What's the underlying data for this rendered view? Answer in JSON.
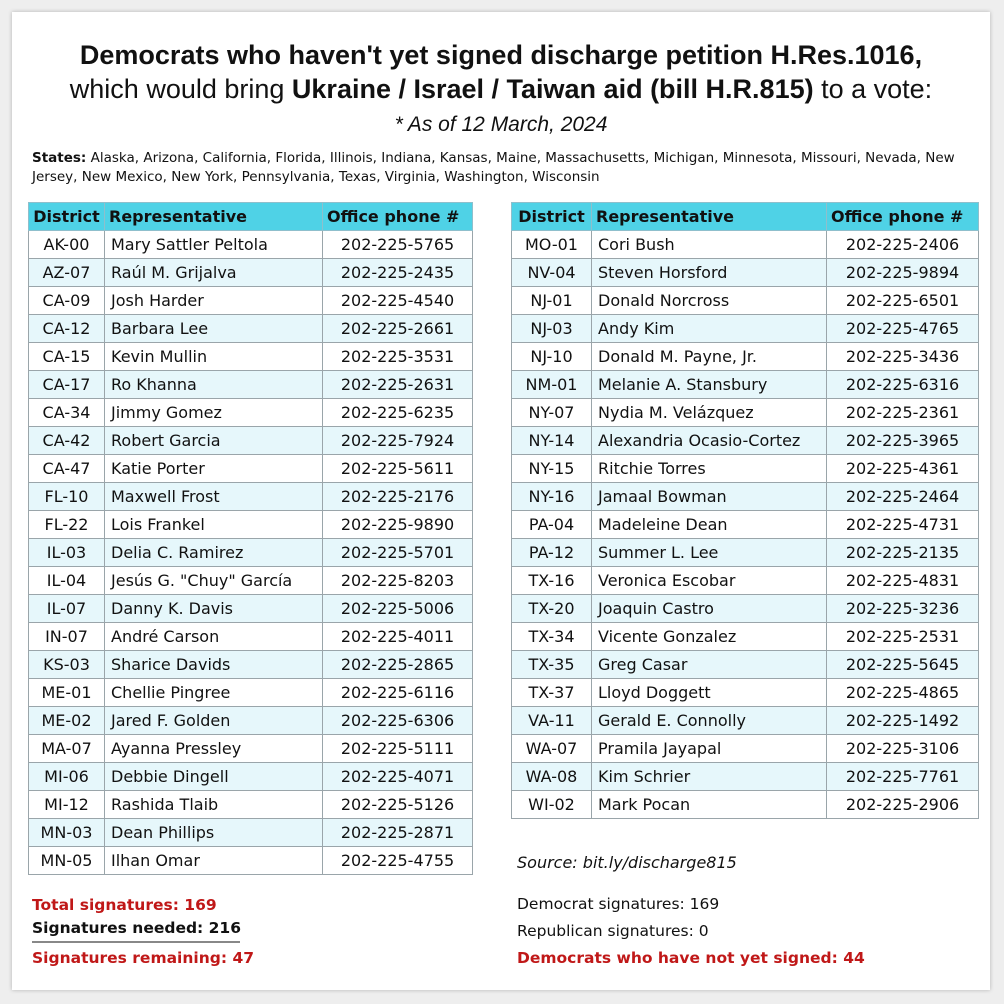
{
  "header": {
    "line1": "Democrats who haven't yet signed discharge petition H.Res.1016,",
    "line2_prefix": "which would bring ",
    "line2_bold": "Ukraine / Israel / Taiwan aid (bill H.R.815)",
    "line2_suffix": " to a vote:",
    "as_of": "* As of 12 March, 2024"
  },
  "states": {
    "label": "States:",
    "list": " Alaska, Arizona, California, Florida, Illinois, Indiana, Kansas, Maine, Massachusetts, Michigan, Minnesota, Missouri, Nevada, New Jersey, New Mexico, New York, Pennsylvania, Texas, Virginia, Washington, Wisconsin"
  },
  "columns": {
    "district": "District",
    "representative": "Representative",
    "phone": "Office phone #"
  },
  "left_rows": [
    {
      "district": "AK-00",
      "name": "Mary Sattler Peltola",
      "phone": "202-225-5765"
    },
    {
      "district": "AZ-07",
      "name": "Raúl M. Grijalva",
      "phone": "202-225-2435"
    },
    {
      "district": "CA-09",
      "name": "Josh Harder",
      "phone": "202-225-4540"
    },
    {
      "district": "CA-12",
      "name": "Barbara Lee",
      "phone": "202-225-2661"
    },
    {
      "district": "CA-15",
      "name": "Kevin Mullin",
      "phone": "202-225-3531"
    },
    {
      "district": "CA-17",
      "name": "Ro Khanna",
      "phone": "202-225-2631"
    },
    {
      "district": "CA-34",
      "name": "Jimmy Gomez",
      "phone": "202-225-6235"
    },
    {
      "district": "CA-42",
      "name": "Robert Garcia",
      "phone": "202-225-7924"
    },
    {
      "district": "CA-47",
      "name": "Katie Porter",
      "phone": "202-225-5611"
    },
    {
      "district": "FL-10",
      "name": "Maxwell Frost",
      "phone": "202-225-2176"
    },
    {
      "district": "FL-22",
      "name": "Lois Frankel",
      "phone": "202-225-9890"
    },
    {
      "district": "IL-03",
      "name": "Delia C. Ramirez",
      "phone": "202-225-5701"
    },
    {
      "district": "IL-04",
      "name": "Jesús G. \"Chuy\" García",
      "phone": "202-225-8203"
    },
    {
      "district": "IL-07",
      "name": "Danny K. Davis",
      "phone": "202-225-5006"
    },
    {
      "district": "IN-07",
      "name": "André Carson",
      "phone": "202-225-4011"
    },
    {
      "district": "KS-03",
      "name": "Sharice Davids",
      "phone": "202-225-2865"
    },
    {
      "district": "ME-01",
      "name": "Chellie Pingree",
      "phone": "202-225-6116"
    },
    {
      "district": "ME-02",
      "name": "Jared F. Golden",
      "phone": "202-225-6306"
    },
    {
      "district": "MA-07",
      "name": "Ayanna Pressley",
      "phone": "202-225-5111"
    },
    {
      "district": "MI-06",
      "name": "Debbie Dingell",
      "phone": "202-225-4071"
    },
    {
      "district": "MI-12",
      "name": "Rashida Tlaib",
      "phone": "202-225-5126"
    },
    {
      "district": "MN-03",
      "name": "Dean Phillips",
      "phone": "202-225-2871"
    },
    {
      "district": "MN-05",
      "name": "Ilhan Omar",
      "phone": "202-225-4755"
    }
  ],
  "right_rows": [
    {
      "district": "MO-01",
      "name": "Cori Bush",
      "phone": "202-225-2406"
    },
    {
      "district": "NV-04",
      "name": "Steven Horsford",
      "phone": "202-225-9894"
    },
    {
      "district": "NJ-01",
      "name": "Donald Norcross",
      "phone": "202-225-6501"
    },
    {
      "district": "NJ-03",
      "name": "Andy Kim",
      "phone": "202-225-4765"
    },
    {
      "district": "NJ-10",
      "name": "Donald M. Payne, Jr.",
      "phone": "202-225-3436"
    },
    {
      "district": "NM-01",
      "name": "Melanie A. Stansbury",
      "phone": "202-225-6316"
    },
    {
      "district": "NY-07",
      "name": "Nydia M. Velázquez",
      "phone": "202-225-2361"
    },
    {
      "district": "NY-14",
      "name": "Alexandria Ocasio-Cortez",
      "phone": "202-225-3965"
    },
    {
      "district": "NY-15",
      "name": "Ritchie Torres",
      "phone": "202-225-4361"
    },
    {
      "district": "NY-16",
      "name": "Jamaal Bowman",
      "phone": "202-225-2464"
    },
    {
      "district": "PA-04",
      "name": "Madeleine Dean",
      "phone": "202-225-4731"
    },
    {
      "district": "PA-12",
      "name": "Summer L. Lee",
      "phone": "202-225-2135"
    },
    {
      "district": "TX-16",
      "name": "Veronica Escobar",
      "phone": "202-225-4831"
    },
    {
      "district": "TX-20",
      "name": "Joaquin Castro",
      "phone": "202-225-3236"
    },
    {
      "district": "TX-34",
      "name": "Vicente Gonzalez",
      "phone": "202-225-2531"
    },
    {
      "district": "TX-35",
      "name": "Greg Casar",
      "phone": "202-225-5645"
    },
    {
      "district": "TX-37",
      "name": "Lloyd Doggett",
      "phone": "202-225-4865"
    },
    {
      "district": "VA-11",
      "name": "Gerald E. Connolly",
      "phone": "202-225-1492"
    },
    {
      "district": "WA-07",
      "name": "Pramila Jayapal",
      "phone": "202-225-3106"
    },
    {
      "district": "WA-08",
      "name": "Kim Schrier",
      "phone": "202-225-7761"
    },
    {
      "district": "WI-02",
      "name": "Mark Pocan",
      "phone": "202-225-2906"
    }
  ],
  "source": "Source:  bit.ly/discharge815",
  "totals": {
    "total_label": "Total signatures:  169",
    "needed_label": "Signatures needed:  216",
    "remaining_label": "Signatures remaining:  47"
  },
  "breakdown": {
    "dem_label": "Democrat signatures:  169",
    "rep_label": "Republican signatures:  0",
    "unsigned_label": "Democrats who have not yet signed: 44"
  },
  "colors": {
    "header_bg": "#4fd2e6",
    "stripe": "#e6f7fb",
    "accent_red": "#c01818"
  }
}
